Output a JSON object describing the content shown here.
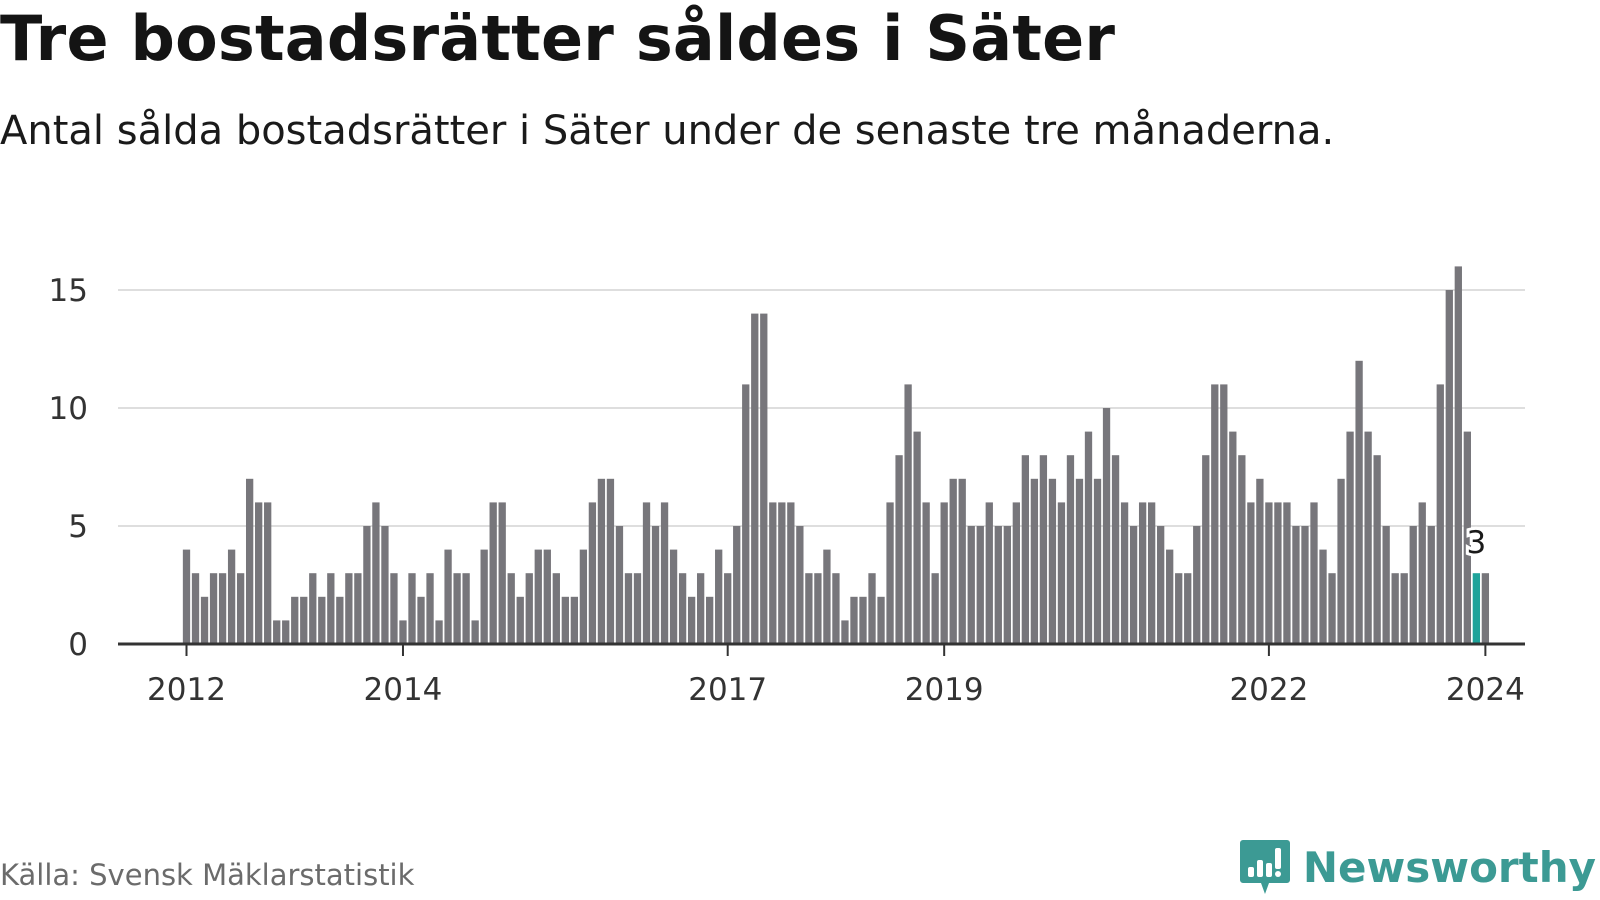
{
  "title": "Tre bostadsrätter såldes i Säter",
  "subtitle": "Antal sålda bostadsrätter i Säter under de senaste tre månaderna.",
  "source": "Källa: Svensk Mäklarstatistik",
  "brand": {
    "name": "Newsworthy",
    "icon": "newsworthy-logo-icon"
  },
  "colors": {
    "bar": "#77767b",
    "highlight": "#1fa39a",
    "grid": "#dedede",
    "axis": "#333333",
    "brand": "#3c9a94"
  },
  "chart_data": {
    "type": "bar",
    "title": "Tre bostadsrätter såldes i Säter",
    "xlabel": "",
    "ylabel": "",
    "ylim": [
      0,
      16
    ],
    "yticks": [
      0,
      5,
      10,
      15
    ],
    "grid": true,
    "start": "2012-01",
    "xtick_labels": [
      "2012",
      "2014",
      "2017",
      "2019",
      "2022",
      "2024"
    ],
    "xtick_index": [
      0,
      24,
      60,
      84,
      120,
      144
    ],
    "highlight_index": 143,
    "highlight_label": "3",
    "values": [
      4,
      3,
      2,
      3,
      3,
      4,
      3,
      7,
      6,
      6,
      1,
      1,
      2,
      2,
      3,
      2,
      3,
      2,
      3,
      3,
      5,
      6,
      5,
      3,
      1,
      3,
      2,
      3,
      1,
      4,
      3,
      3,
      1,
      4,
      6,
      6,
      3,
      2,
      3,
      4,
      4,
      3,
      2,
      2,
      4,
      6,
      7,
      7,
      5,
      3,
      3,
      6,
      5,
      6,
      4,
      3,
      2,
      3,
      2,
      4,
      3,
      5,
      11,
      14,
      14,
      6,
      6,
      6,
      5,
      3,
      3,
      4,
      3,
      1,
      2,
      2,
      3,
      2,
      6,
      8,
      11,
      9,
      6,
      3,
      6,
      7,
      7,
      5,
      5,
      6,
      5,
      5,
      6,
      8,
      7,
      8,
      7,
      6,
      8,
      7,
      9,
      7,
      10,
      8,
      6,
      5,
      6,
      6,
      5,
      4,
      3,
      3,
      5,
      8,
      11,
      11,
      9,
      8,
      6,
      7,
      6,
      6,
      6,
      5,
      5,
      6,
      4,
      3,
      7,
      9,
      12,
      9,
      8,
      5,
      3,
      3,
      5,
      6,
      5,
      11,
      15,
      16,
      9,
      3,
      3
    ]
  }
}
